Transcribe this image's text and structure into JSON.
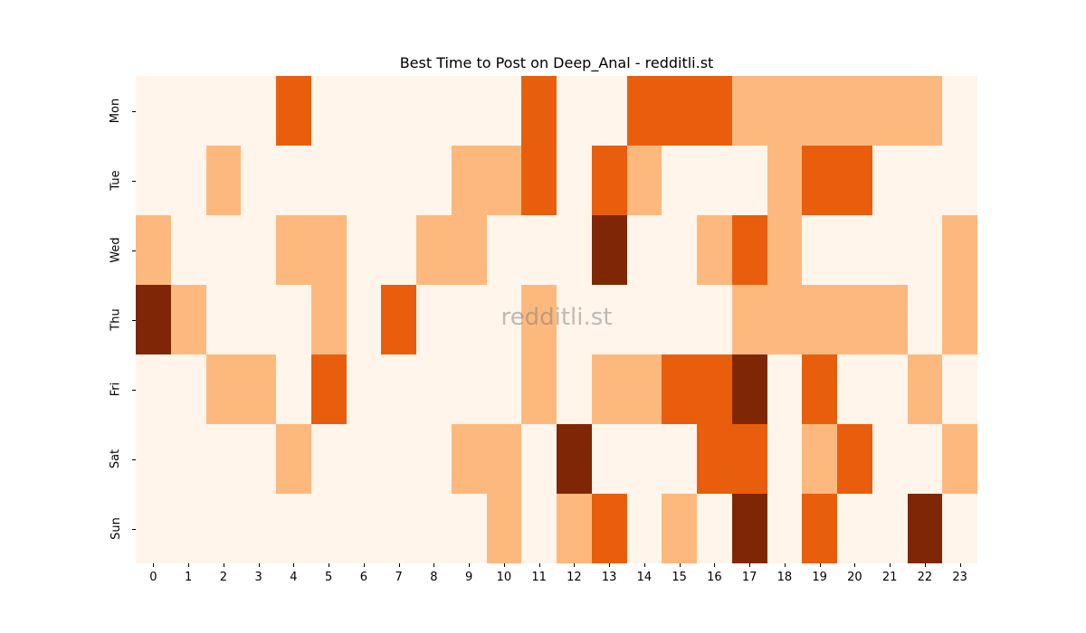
{
  "chart_data": {
    "type": "heatmap",
    "title": "Best Time to Post on Deep_Anal - redditli.st",
    "xlabel": "",
    "ylabel": "",
    "x": [
      "0",
      "1",
      "2",
      "3",
      "4",
      "5",
      "6",
      "7",
      "8",
      "9",
      "10",
      "11",
      "12",
      "13",
      "14",
      "15",
      "16",
      "17",
      "18",
      "19",
      "20",
      "21",
      "22",
      "23"
    ],
    "y": [
      "Mon",
      "Tue",
      "Wed",
      "Thu",
      "Fri",
      "Sat",
      "Sun"
    ],
    "colormap": "Oranges",
    "levels": 4,
    "level_colors": [
      "#fff5eb",
      "#fdb97d",
      "#e95e0d",
      "#7f2704"
    ],
    "values": [
      [
        0,
        0,
        0,
        0,
        2,
        0,
        0,
        0,
        0,
        0,
        0,
        2,
        0,
        0,
        2,
        2,
        2,
        1,
        1,
        1,
        1,
        1,
        1,
        0
      ],
      [
        0,
        0,
        1,
        0,
        0,
        0,
        0,
        0,
        0,
        1,
        1,
        2,
        0,
        2,
        1,
        0,
        0,
        0,
        1,
        2,
        2,
        0,
        0,
        0
      ],
      [
        1,
        0,
        0,
        0,
        1,
        1,
        0,
        0,
        1,
        1,
        0,
        0,
        0,
        3,
        0,
        0,
        1,
        2,
        1,
        0,
        0,
        0,
        0,
        1
      ],
      [
        3,
        1,
        0,
        0,
        0,
        1,
        0,
        2,
        0,
        0,
        0,
        1,
        0,
        0,
        0,
        0,
        0,
        1,
        1,
        1,
        1,
        1,
        0,
        1
      ],
      [
        0,
        0,
        1,
        1,
        0,
        2,
        0,
        0,
        0,
        0,
        0,
        1,
        0,
        1,
        1,
        2,
        2,
        3,
        0,
        2,
        0,
        0,
        1,
        0
      ],
      [
        0,
        0,
        0,
        0,
        1,
        0,
        0,
        0,
        0,
        1,
        1,
        0,
        3,
        0,
        0,
        0,
        2,
        2,
        0,
        1,
        2,
        0,
        0,
        1
      ],
      [
        0,
        0,
        0,
        0,
        0,
        0,
        0,
        0,
        0,
        0,
        1,
        0,
        1,
        2,
        0,
        1,
        0,
        3,
        0,
        2,
        0,
        0,
        3,
        0
      ]
    ],
    "grid": false,
    "legend": "none"
  },
  "watermark": "redditli.st"
}
